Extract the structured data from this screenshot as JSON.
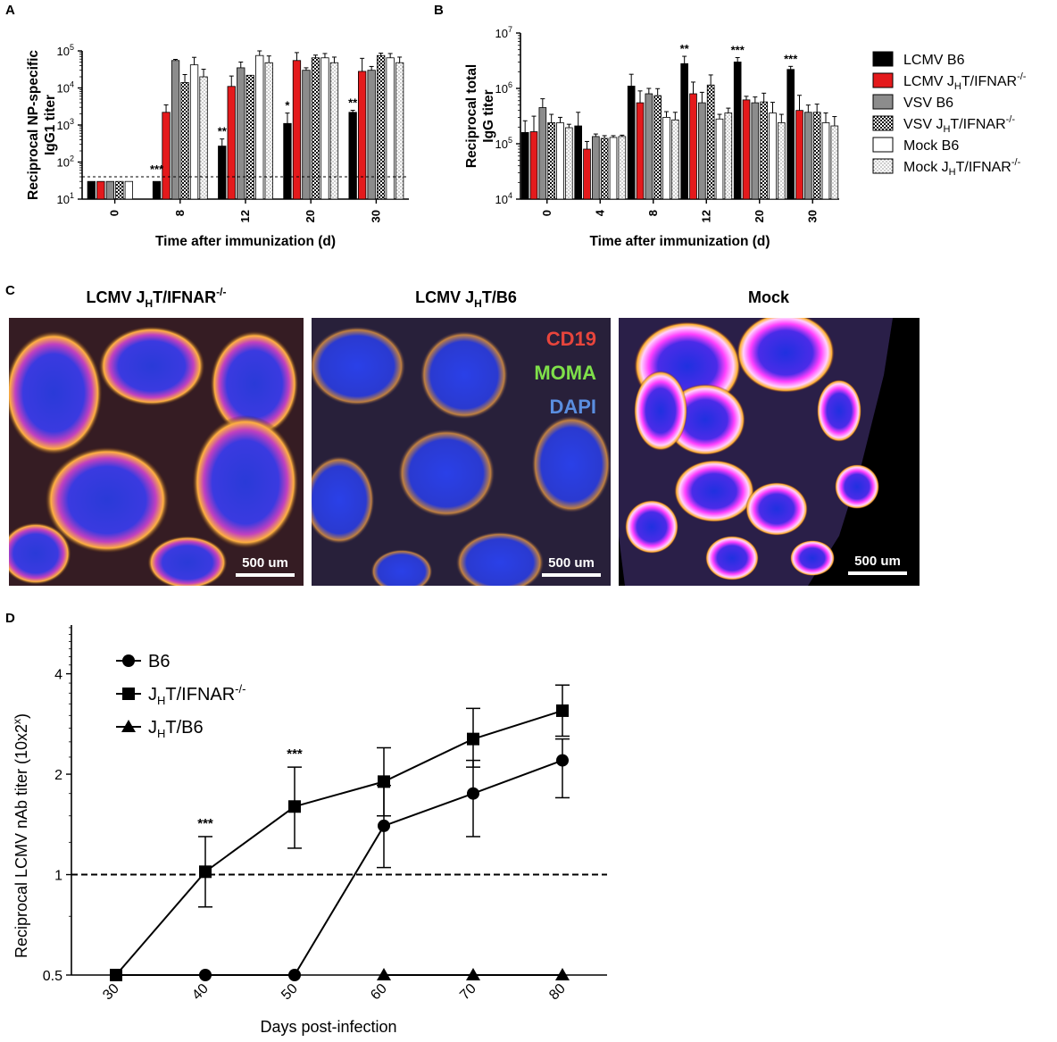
{
  "panels": {
    "A": "A",
    "B": "B",
    "C": "C",
    "D": "D"
  },
  "legend_ab": [
    {
      "name": "LCMV B6",
      "sub": "",
      "sup": "",
      "fill": "#000000",
      "pattern": "solid"
    },
    {
      "name": "LCMV J",
      "sub": "H",
      "tail": "T/IFNAR",
      "sup": "-/-",
      "fill": "#e41a1c",
      "pattern": "solid"
    },
    {
      "name": "VSV B6",
      "sub": "",
      "sup": "",
      "fill": "#8c8c8c",
      "pattern": "solid"
    },
    {
      "name": "VSV J",
      "sub": "H",
      "tail": "T/IFNAR",
      "sup": "-/-",
      "fill": "#333333",
      "pattern": "checker"
    },
    {
      "name": "Mock B6",
      "sub": "",
      "sup": "",
      "fill": "#ffffff",
      "pattern": "solid"
    },
    {
      "name": "Mock J",
      "sub": "H",
      "tail": "T/IFNAR",
      "sup": "-/-",
      "fill": "#f2f2f2",
      "pattern": "dots"
    }
  ],
  "micrographs": {
    "titles": [
      {
        "main": "LCMV J",
        "sub": "H",
        "tail": "T/IFNAR",
        "sup": "-/-"
      },
      {
        "main": "LCMV J",
        "sub": "H",
        "tail": "T/B6",
        "sup": ""
      },
      {
        "main": "Mock",
        "sub": "",
        "tail": "",
        "sup": ""
      }
    ],
    "scale_bar": "500 um",
    "stain_labels": [
      {
        "text": "CD19",
        "color": "#e8453c"
      },
      {
        "text": "MOMA",
        "color": "#7fe04a"
      },
      {
        "text": "DAPI",
        "color": "#5a8ee0"
      }
    ]
  },
  "chart_data": [
    {
      "id": "A",
      "type": "bar",
      "ylabel_lines": [
        "Reciprocal NP-specific",
        "IgG1 titer"
      ],
      "xlabel": "Time after immunization (d)",
      "yscale": "log",
      "ylim": [
        10,
        100000
      ],
      "yticks": [
        {
          "b": "10",
          "e": "1"
        },
        {
          "b": "10",
          "e": "2"
        },
        {
          "b": "10",
          "e": "3"
        },
        {
          "b": "10",
          "e": "4"
        },
        {
          "b": "10",
          "e": "5"
        }
      ],
      "categories": [
        "0",
        "8",
        "12",
        "20",
        "30"
      ],
      "threshold": 40,
      "series": [
        {
          "name": "LCMV B6",
          "values": [
            30,
            30,
            270,
            1100,
            2200
          ],
          "errors": [
            0,
            0,
            150,
            1000,
            300
          ]
        },
        {
          "name": "LCMV JHT/IFNAR-/-",
          "values": [
            30,
            2200,
            11000,
            55000,
            28000
          ],
          "errors": [
            0,
            1300,
            10000,
            35000,
            35000
          ]
        },
        {
          "name": "VSV B6",
          "values": [
            30,
            55000,
            35000,
            30000,
            30000
          ],
          "errors": [
            0,
            4000,
            15000,
            5000,
            8000
          ]
        },
        {
          "name": "VSV JHT/IFNAR-/-",
          "values": [
            30,
            14000,
            22000,
            65000,
            75000
          ],
          "errors": [
            0,
            9000,
            0,
            12000,
            12000
          ]
        },
        {
          "name": "Mock B6",
          "values": [
            30,
            42000,
            75000,
            65000,
            65000
          ],
          "errors": [
            0,
            25000,
            25000,
            20000,
            20000
          ]
        },
        {
          "name": "Mock JHT/IFNAR-/-",
          "values": [
            null,
            20000,
            48000,
            48000,
            48000
          ],
          "errors": [
            0,
            12000,
            25000,
            20000,
            20000
          ]
        }
      ],
      "annotations": [
        {
          "category": "8",
          "offset": -1,
          "value": 30,
          "text": "***"
        },
        {
          "category": "12",
          "offset": -2.5,
          "value": 270,
          "text": "**"
        },
        {
          "category": "20",
          "offset": -2.5,
          "value": 1100,
          "text": "*"
        },
        {
          "category": "30",
          "offset": -2.5,
          "value": 2200,
          "text": "**"
        }
      ]
    },
    {
      "id": "B",
      "type": "bar",
      "ylabel_lines": [
        "Reciprocal total",
        "IgG titer"
      ],
      "xlabel": "Time after immunization (d)",
      "yscale": "log",
      "ylim": [
        10000,
        10000000
      ],
      "yticks": [
        {
          "b": "10",
          "e": "4"
        },
        {
          "b": "10",
          "e": "5"
        },
        {
          "b": "10",
          "e": "6"
        },
        {
          "b": "10",
          "e": "7"
        }
      ],
      "categories": [
        "0",
        "4",
        "8",
        "12",
        "20",
        "30"
      ],
      "series": [
        {
          "name": "LCMV B6",
          "values": [
            160000,
            210000,
            1100000,
            2800000,
            3000000,
            2200000
          ],
          "errors": [
            100000,
            160000,
            700000,
            1000000,
            600000,
            300000
          ]
        },
        {
          "name": "LCMV JHT/IFNAR-/-",
          "values": [
            165000,
            80000,
            550000,
            800000,
            620000,
            400000
          ],
          "errors": [
            150000,
            30000,
            350000,
            500000,
            100000,
            350000
          ]
        },
        {
          "name": "VSV B6",
          "values": [
            450000,
            135000,
            800000,
            550000,
            550000,
            370000
          ],
          "errors": [
            200000,
            15000,
            200000,
            300000,
            150000,
            130000
          ]
        },
        {
          "name": "VSV JHT/IFNAR-/-",
          "values": [
            240000,
            125000,
            740000,
            1150000,
            570000,
            370000
          ],
          "errors": [
            100000,
            15000,
            250000,
            600000,
            250000,
            150000
          ]
        },
        {
          "name": "Mock B6",
          "values": [
            240000,
            130000,
            300000,
            280000,
            360000,
            240000
          ],
          "errors": [
            60000,
            10000,
            80000,
            60000,
            200000,
            120000
          ]
        },
        {
          "name": "Mock JHT/IFNAR-/-",
          "values": [
            195000,
            135000,
            270000,
            360000,
            240000,
            210000
          ],
          "errors": [
            30000,
            8000,
            100000,
            80000,
            100000,
            100000
          ]
        }
      ],
      "annotations": [
        {
          "category": "12",
          "offset": -2.5,
          "value": 2800000,
          "text": "**"
        },
        {
          "category": "20",
          "offset": -2.5,
          "value": 3000000,
          "text": "***"
        },
        {
          "category": "30",
          "offset": -2.5,
          "value": 2200000,
          "text": "***"
        }
      ]
    },
    {
      "id": "D",
      "type": "line",
      "ylabel": "Reciprocal LCMV nAb titer (10x2",
      "ylabel_sup": "x",
      "ylabel_close": ")",
      "xlabel": "Days post-infection",
      "yscale": "log2",
      "ylim": [
        0.5,
        5.6
      ],
      "xlim": [
        25,
        85
      ],
      "yticks": [
        "0.5",
        "1",
        "2",
        "4"
      ],
      "ytick_values": [
        0.5,
        1,
        2,
        4
      ],
      "xticks": [
        30,
        40,
        50,
        60,
        70,
        80
      ],
      "threshold": 1,
      "series": [
        {
          "name": "B6",
          "sub": "",
          "tail": "",
          "sup": "",
          "marker": "circle",
          "x": [
            30,
            40,
            50,
            60,
            70,
            80
          ],
          "y": [
            0.5,
            0.5,
            0.5,
            1.4,
            1.75,
            2.2
          ],
          "err_hi": [
            0,
            0,
            0,
            1.85,
            2.2,
            2.55
          ],
          "err_lo": [
            0,
            0,
            0,
            1.05,
            1.3,
            1.7
          ]
        },
        {
          "name": "J",
          "sub": "H",
          "tail": "T/IFNAR",
          "sup": "-/-",
          "marker": "square",
          "x": [
            30,
            40,
            50,
            60,
            70,
            80
          ],
          "y": [
            0.5,
            1.02,
            1.6,
            1.9,
            2.55,
            3.1
          ],
          "err_hi": [
            0,
            1.3,
            2.1,
            2.4,
            3.15,
            3.7
          ],
          "err_lo": [
            0,
            0.8,
            1.2,
            1.5,
            2.1,
            2.6
          ]
        },
        {
          "name": "J",
          "sub": "H",
          "tail": "T/B6",
          "sup": "",
          "marker": "triangle",
          "x": [
            60,
            70,
            80
          ],
          "y": [
            0.5,
            0.5,
            0.5
          ],
          "err_hi": [
            0,
            0,
            0
          ],
          "err_lo": [
            0,
            0,
            0
          ]
        }
      ],
      "annotations": [
        {
          "x": 40,
          "y": 1.3,
          "text": "***"
        },
        {
          "x": 50,
          "y": 2.1,
          "text": "***"
        }
      ]
    }
  ]
}
